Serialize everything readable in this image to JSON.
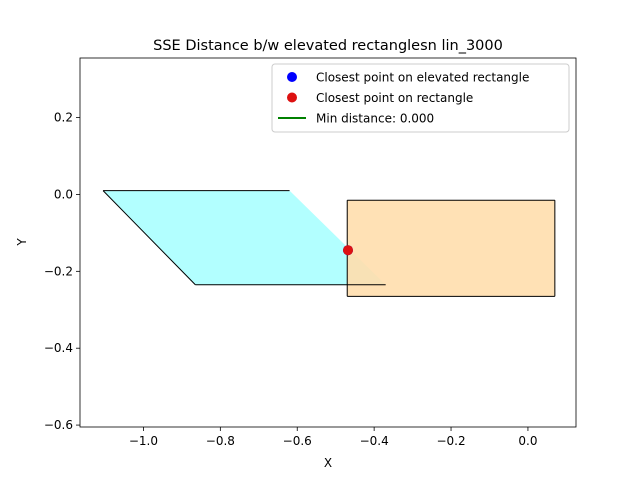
{
  "chart_data": {
    "type": "scatter",
    "title": "SSE Distance b/w elevated rectanglesn lin_3000",
    "xlabel": "X",
    "ylabel": "Y",
    "xlim": [
      -1.165,
      0.125
    ],
    "ylim": [
      -0.605,
      0.355
    ],
    "xticks": [
      {
        "value": -1.0,
        "label": "−1.0"
      },
      {
        "value": -0.8,
        "label": "−0.8"
      },
      {
        "value": -0.6,
        "label": "−0.6"
      },
      {
        "value": -0.4,
        "label": "−0.4"
      },
      {
        "value": -0.2,
        "label": "−0.2"
      },
      {
        "value": 0.0,
        "label": "0.0"
      }
    ],
    "yticks": [
      {
        "value": 0.2,
        "label": "0.2"
      },
      {
        "value": 0.0,
        "label": "0.0"
      },
      {
        "value": -0.2,
        "label": "−0.2"
      },
      {
        "value": -0.4,
        "label": "−0.4"
      },
      {
        "value": -0.6,
        "label": "−0.6"
      }
    ],
    "grid": false,
    "legend_position": "top-right",
    "shapes": [
      {
        "kind": "elevated-rectangle",
        "points": [
          [
            -1.105,
            0.01
          ],
          [
            -0.62,
            0.01
          ],
          [
            -0.37,
            -0.235
          ],
          [
            -0.865,
            -0.235
          ]
        ],
        "fill": "#aaffff",
        "edge": "#000000"
      },
      {
        "kind": "rectangle",
        "points": [
          [
            -0.47,
            -0.015
          ],
          [
            0.07,
            -0.015
          ],
          [
            0.07,
            -0.265
          ],
          [
            -0.47,
            -0.265
          ]
        ],
        "fill": "#ffdead",
        "edge": "#000000"
      }
    ],
    "series": [
      {
        "name": "Closest point on elevated rectangle",
        "type": "scatter",
        "color": "#0000ff",
        "points": [
          [
            -0.468,
            -0.145
          ]
        ]
      },
      {
        "name": "Closest point on rectangle",
        "type": "scatter",
        "color": "#dd1111",
        "points": [
          [
            -0.468,
            -0.145
          ]
        ]
      },
      {
        "name": "Min distance: 0.000",
        "type": "line",
        "color": "#008000",
        "points": [
          [
            -0.468,
            -0.145
          ],
          [
            -0.468,
            -0.145
          ]
        ]
      }
    ]
  }
}
